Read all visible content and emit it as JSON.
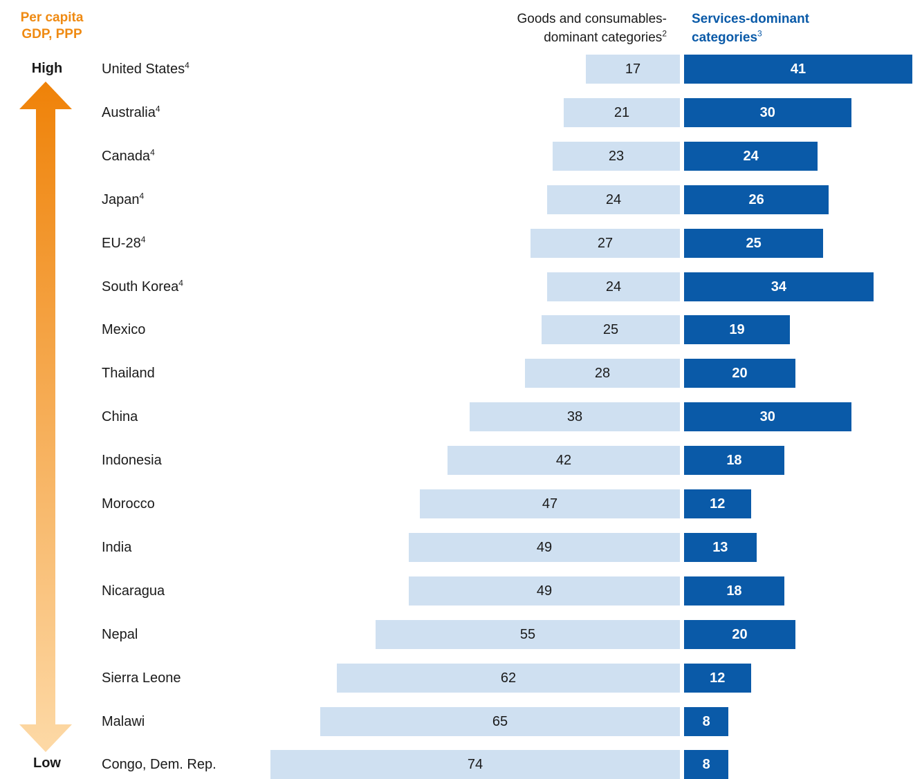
{
  "y_axis": {
    "title_line1": "Per capita",
    "title_line2": "GDP, PPP",
    "high_label": "High",
    "low_label": "Low",
    "arrow_colors": [
      "#ef8208",
      "#fdd9a6"
    ]
  },
  "headers": {
    "goods_line1": "Goods and consumables-",
    "goods_line2": "dominant categories",
    "goods_note": "2",
    "services_line1": "Services-dominant",
    "services_line2": "categories",
    "services_note": "3"
  },
  "colors": {
    "goods": "#cfe0f1",
    "services": "#0a5aa8",
    "axis_title": "#ef8a12"
  },
  "chart_data": {
    "type": "bar",
    "orientation": "horizontal-diverging",
    "categories": [
      "United States",
      "Australia",
      "Canada",
      "Japan",
      "EU-28",
      "South Korea",
      "Mexico",
      "Thailand",
      "China",
      "Indonesia",
      "Morocco",
      "India",
      "Nicaragua",
      "Nepal",
      "Sierra Leone",
      "Malawi",
      "Congo, Dem. Rep."
    ],
    "category_notes": [
      "4",
      "4",
      "4",
      "4",
      "4",
      "4",
      "",
      "",
      "",
      "",
      "",
      "",
      "",
      "",
      "",
      "",
      ""
    ],
    "series": [
      {
        "name": "Goods and consumables-dominant categories",
        "values": [
          17,
          21,
          23,
          24,
          27,
          24,
          25,
          28,
          38,
          42,
          47,
          49,
          49,
          55,
          62,
          65,
          74
        ]
      },
      {
        "name": "Services-dominant categories",
        "values": [
          41,
          30,
          24,
          26,
          25,
          34,
          19,
          20,
          30,
          18,
          12,
          13,
          18,
          20,
          12,
          8,
          8
        ]
      }
    ]
  }
}
